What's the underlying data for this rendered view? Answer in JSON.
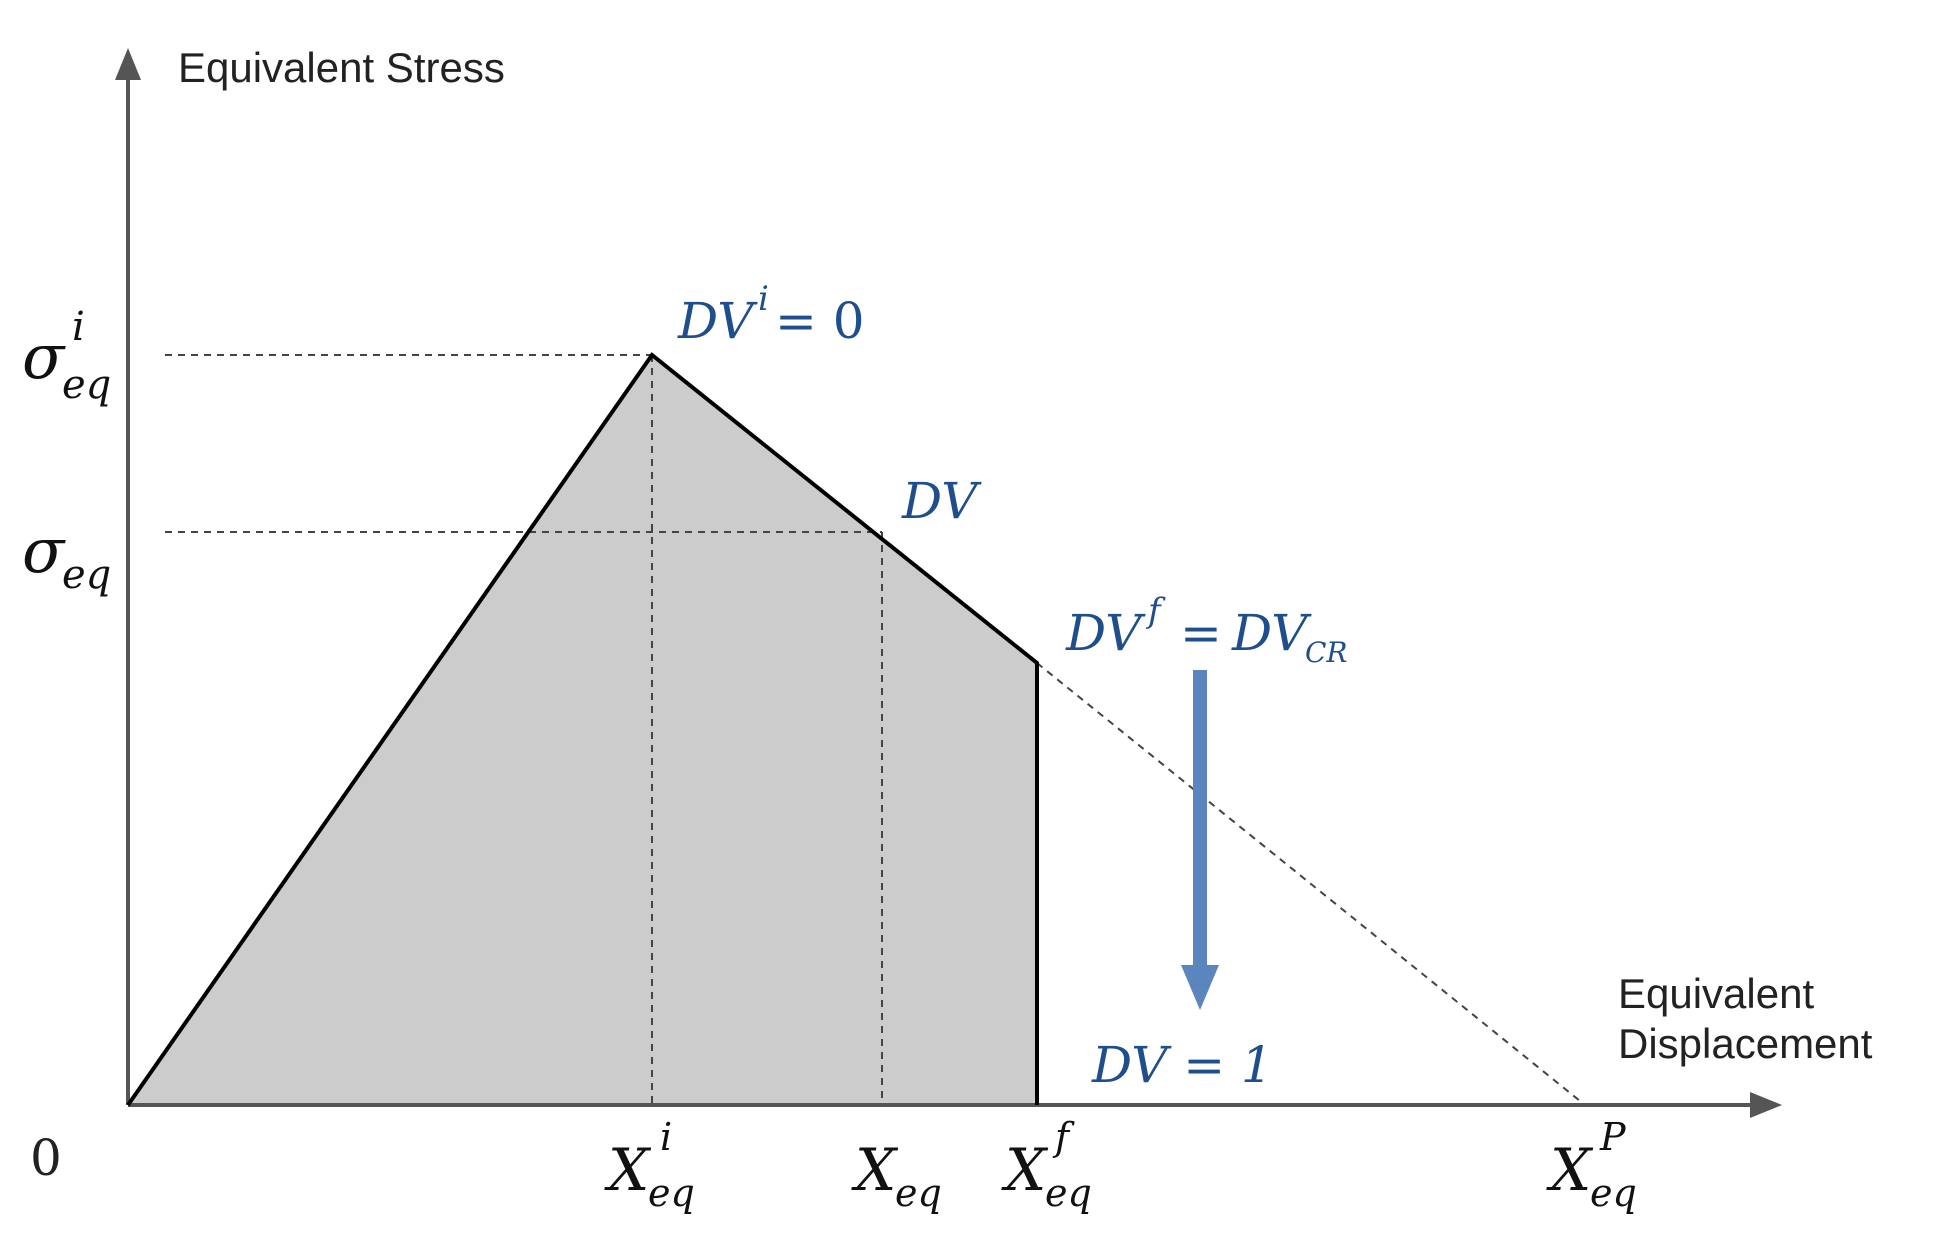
{
  "y_axis_label": "Equivalent Stress",
  "x_axis_label_line1": "Equivalent",
  "x_axis_label_line2": "Displacement",
  "origin_label": "0",
  "sigma_symbol": "σ",
  "x_symbol": "X",
  "eq_subscript": "eq",
  "sup_i": "i",
  "sup_f": "f",
  "sup_p": "P",
  "dv_symbol": "DV",
  "dv_initial_value": "= 0",
  "dv_final_equals": "=",
  "dv_cr_symbol": "DV",
  "cr_subscript": "CR",
  "dv_one_label": "DV = 1",
  "colors": {
    "axis": "#555555",
    "curve": "#000000",
    "fill": "#cccccc",
    "dashed": "#444444",
    "annotation": "#1f4e8c",
    "arrow": "#5b86bd"
  }
}
